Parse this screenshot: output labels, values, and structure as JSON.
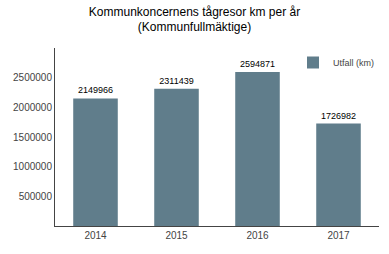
{
  "chart_data": {
    "type": "bar",
    "title": "Kommunkoncernens tågresor km per år\n(Kommunfullmäktige)",
    "categories": [
      "2014",
      "2015",
      "2016",
      "2017"
    ],
    "series": [
      {
        "name": "Utfall (km)",
        "color": "#607d8b",
        "values": [
          2149966,
          2311439,
          2594871,
          1726982
        ]
      }
    ],
    "ylim": [
      0,
      3000000
    ],
    "yticks": [
      500000,
      1000000,
      1500000,
      2000000,
      2500000
    ],
    "grid": false,
    "legend": "upper right",
    "data_labels": true
  }
}
